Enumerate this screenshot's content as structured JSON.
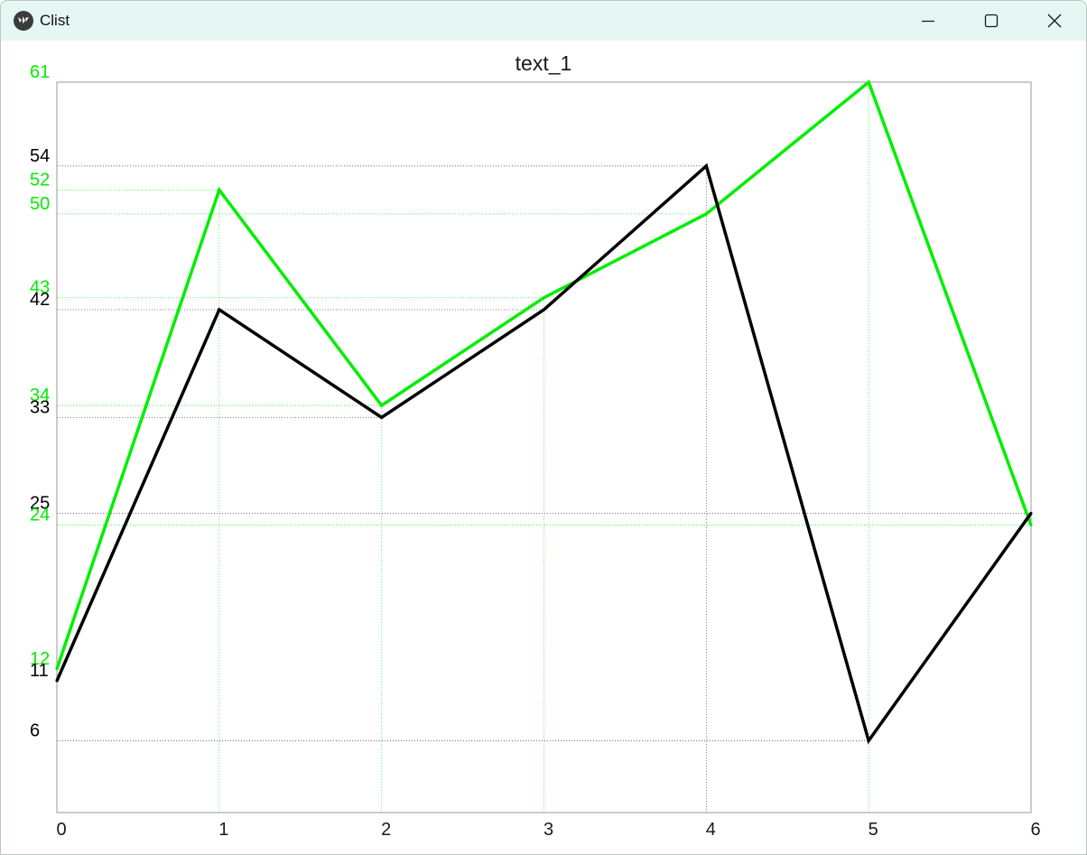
{
  "window": {
    "title": "Clist",
    "app_icon": "kivy-logo-icon",
    "controls": {
      "minimize": "minimize-icon",
      "maximize": "maximize-icon",
      "close": "close-icon"
    }
  },
  "colors": {
    "titlebar_bg": "#e5f6f3",
    "series_green": "#00ee00",
    "series_black": "#000000",
    "frame": "#9a9a9a"
  },
  "chart_data": {
    "type": "line",
    "title": "text_1",
    "xlabel": "",
    "ylabel": "",
    "x": [
      0,
      1,
      2,
      3,
      4,
      5,
      6
    ],
    "xlim": [
      0,
      6
    ],
    "ylim": [
      0,
      61
    ],
    "x_tick_labels": [
      "0",
      "1",
      "2",
      "3",
      "4",
      "5",
      "6"
    ],
    "grid": "dotted lines at each x tick and at each data value",
    "series": [
      {
        "color": "#00ee00",
        "values": [
          12,
          52,
          34,
          43,
          50,
          61,
          24
        ]
      },
      {
        "color": "#000000",
        "values": [
          11,
          42,
          33,
          42,
          54,
          6,
          25
        ]
      }
    ],
    "y_value_labels": [
      {
        "text": "61",
        "value": 61,
        "color": "#00ee00"
      },
      {
        "text": "54",
        "value": 54,
        "color": "#000000"
      },
      {
        "text": "52",
        "value": 52,
        "color": "#00ee00"
      },
      {
        "text": "50",
        "value": 50,
        "color": "#00ee00"
      },
      {
        "text": "43",
        "value": 43,
        "color": "#00ee00"
      },
      {
        "text": "42",
        "value": 42,
        "color": "#000000"
      },
      {
        "text": "34",
        "value": 34,
        "color": "#00ee00"
      },
      {
        "text": "33",
        "value": 33,
        "color": "#000000"
      },
      {
        "text": "25",
        "value": 25,
        "color": "#000000"
      },
      {
        "text": "24",
        "value": 24,
        "color": "#00ee00"
      },
      {
        "text": "12",
        "value": 12,
        "color": "#00ee00"
      },
      {
        "text": "11",
        "value": 11,
        "color": "#000000"
      },
      {
        "text": "6",
        "value": 6,
        "color": "#000000"
      }
    ]
  }
}
